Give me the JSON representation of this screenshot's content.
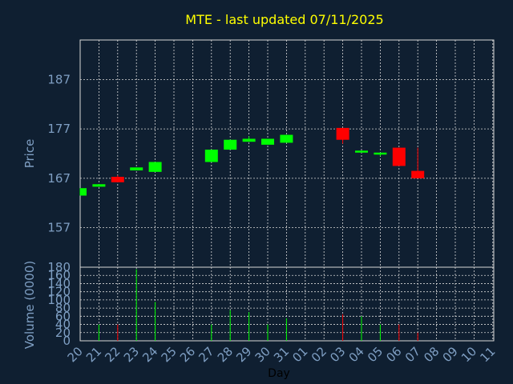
{
  "chart_data": {
    "title": "MTE - last updated 07/11/2025",
    "price_panel": {
      "type": "candlestick",
      "ylabel": "Price",
      "yticks": [
        157,
        167,
        177,
        187
      ],
      "ylim": [
        149,
        195
      ]
    },
    "volume_panel": {
      "type": "bar",
      "ylabel": "Volume (0000)",
      "yticks": [
        0,
        20,
        40,
        60,
        80,
        100,
        120,
        140,
        160,
        180
      ],
      "ylim": [
        0,
        180
      ]
    },
    "xlabel": "Day",
    "x_ticks": [
      "20",
      "21",
      "22",
      "23",
      "24",
      "25",
      "26",
      "27",
      "28",
      "29",
      "30",
      "31",
      "01",
      "02",
      "03",
      "04",
      "05",
      "06",
      "07",
      "08",
      "09",
      "10",
      "11"
    ],
    "candles": [
      {
        "day": "20",
        "open": 163.5,
        "close": 165.0,
        "high": 165.0,
        "low": 163.5,
        "direction": "up",
        "volume": 0
      },
      {
        "day": "21",
        "open": 165.3,
        "close": 165.8,
        "high": 165.8,
        "low": 165.3,
        "direction": "up",
        "volume": 40
      },
      {
        "day": "22",
        "open": 167.3,
        "close": 166.2,
        "high": 167.6,
        "low": 166.2,
        "direction": "down",
        "volume": 40
      },
      {
        "day": "23",
        "open": 168.6,
        "close": 169.2,
        "high": 169.2,
        "low": 168.6,
        "direction": "up",
        "volume": 175
      },
      {
        "day": "24",
        "open": 168.3,
        "close": 170.3,
        "high": 170.3,
        "low": 168.3,
        "direction": "up",
        "volume": 95
      },
      {
        "day": "27",
        "open": 170.3,
        "close": 172.8,
        "high": 172.8,
        "low": 170.3,
        "direction": "up",
        "volume": 40
      },
      {
        "day": "28",
        "open": 172.8,
        "close": 174.8,
        "high": 174.8,
        "low": 172.8,
        "direction": "up",
        "volume": 75
      },
      {
        "day": "29",
        "open": 174.4,
        "close": 175.0,
        "high": 175.5,
        "low": 174.4,
        "direction": "up",
        "volume": 70
      },
      {
        "day": "30",
        "open": 173.8,
        "close": 175.0,
        "high": 175.0,
        "low": 173.8,
        "direction": "up",
        "volume": 40
      },
      {
        "day": "31",
        "open": 174.2,
        "close": 175.8,
        "high": 175.8,
        "low": 174.2,
        "direction": "up",
        "volume": 55
      },
      {
        "day": "03",
        "open": 177.2,
        "close": 174.8,
        "high": 177.2,
        "low": 174.0,
        "direction": "down",
        "volume": 65
      },
      {
        "day": "04",
        "open": 172.2,
        "close": 172.6,
        "high": 172.6,
        "low": 172.2,
        "direction": "up",
        "volume": 60
      },
      {
        "day": "05",
        "open": 171.8,
        "close": 172.2,
        "high": 172.2,
        "low": 171.5,
        "direction": "up",
        "volume": 40
      },
      {
        "day": "06",
        "open": 173.2,
        "close": 169.5,
        "high": 173.2,
        "low": 169.5,
        "direction": "down",
        "volume": 40
      },
      {
        "day": "07",
        "open": 168.5,
        "close": 167.0,
        "high": 173.2,
        "low": 167.0,
        "direction": "down",
        "volume": 20
      }
    ],
    "colors": {
      "up": "#00ff00",
      "down": "#ff0000",
      "background": "#0f1f31",
      "title": "#ffff00",
      "axis_text": "#7f9fc3",
      "grid": "#d8d8d8"
    },
    "grid": true
  }
}
